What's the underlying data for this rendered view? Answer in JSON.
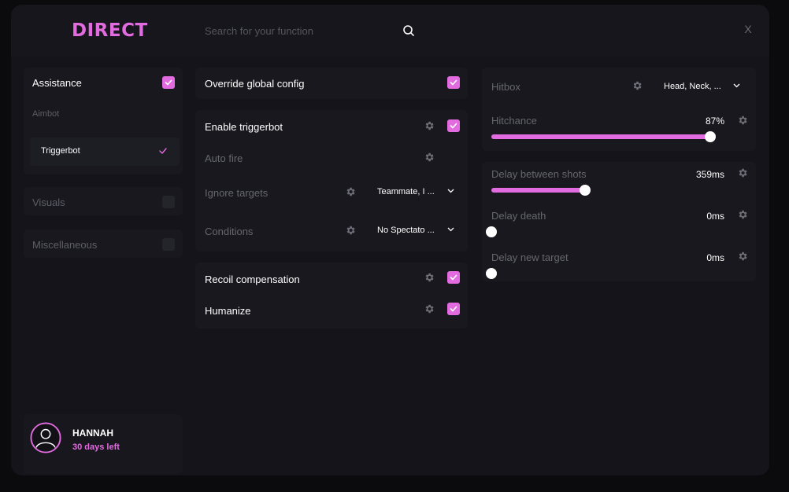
{
  "app": {
    "logo": "DIRECT",
    "close_label": "X"
  },
  "search": {
    "placeholder": "Search for your function"
  },
  "sidebar": {
    "assistance": {
      "label": "Assistance",
      "checked": true
    },
    "aimbot_label": "Aimbot",
    "triggerbot_item": "Triggerbot",
    "visuals": {
      "label": "Visuals",
      "checked": false
    },
    "misc": {
      "label": "Miscellaneous",
      "checked": false
    }
  },
  "user": {
    "name": "HANNAH",
    "subscription": "30 days left"
  },
  "middle": {
    "override": {
      "label": "Override global config",
      "checked": true
    },
    "enable_triggerbot": {
      "label": "Enable triggerbot",
      "checked": true
    },
    "auto_fire": {
      "label": "Auto fire"
    },
    "ignore_targets": {
      "label": "Ignore targets",
      "value": "Teammate, I ..."
    },
    "conditions": {
      "label": "Conditions",
      "value": "No Spectato ..."
    },
    "recoil": {
      "label": "Recoil compensation",
      "checked": true
    },
    "humanize": {
      "label": "Humanize",
      "checked": true
    }
  },
  "right": {
    "hitbox": {
      "label": "Hitbox",
      "value": "Head, Neck,  ..."
    },
    "hitchance": {
      "label": "Hitchance",
      "value_text": "87%",
      "fraction": 1.0
    },
    "delay_shots": {
      "label": "Delay between shots",
      "value_text": "359ms",
      "fraction": 0.4
    },
    "delay_death": {
      "label": "Delay death",
      "value_text": "0ms",
      "fraction": 0
    },
    "delay_target": {
      "label": "Delay new target",
      "value_text": "0ms",
      "fraction": 0
    }
  },
  "colors": {
    "accent": "#e36be0",
    "background": "#14141a",
    "panel": "#18181e"
  },
  "icons": [
    "search-icon",
    "gear-icon",
    "check-icon",
    "chevron-down-icon",
    "user-avatar-icon"
  ]
}
